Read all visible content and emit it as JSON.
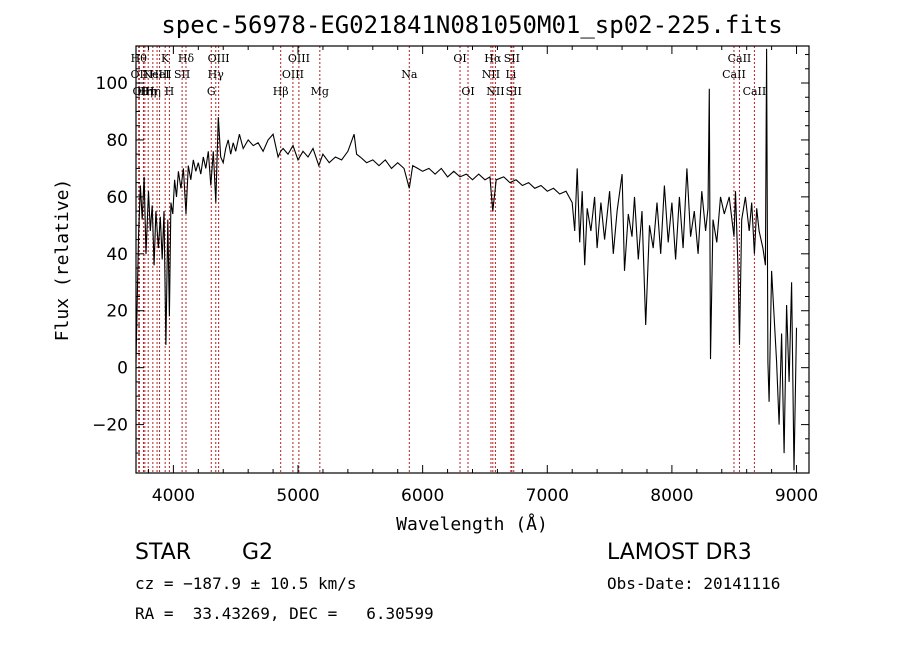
{
  "chart_data": {
    "type": "line",
    "title": "spec-56978-EG021841N081050M01_sp02-225.fits",
    "xlabel": "Wavelength (Å)",
    "ylabel": "Flux (relative)",
    "xlim": [
      3700,
      9100
    ],
    "ylim": [
      -37,
      113
    ],
    "x_ticks": [
      4000,
      5000,
      6000,
      7000,
      8000,
      9000
    ],
    "y_ticks": [
      -20,
      0,
      20,
      40,
      60,
      80,
      100
    ],
    "grid": false,
    "series": [
      {
        "values": [
          [
            3700,
            2
          ],
          [
            3720,
            46
          ],
          [
            3735,
            64
          ],
          [
            3750,
            52
          ],
          [
            3765,
            67
          ],
          [
            3780,
            40
          ],
          [
            3800,
            62
          ],
          [
            3815,
            48
          ],
          [
            3830,
            57
          ],
          [
            3845,
            36
          ],
          [
            3860,
            55
          ],
          [
            3880,
            42
          ],
          [
            3895,
            53
          ],
          [
            3910,
            38
          ],
          [
            3925,
            55
          ],
          [
            3940,
            8
          ],
          [
            3955,
            52
          ],
          [
            3968,
            18
          ],
          [
            3980,
            58
          ],
          [
            3995,
            54
          ],
          [
            4010,
            66
          ],
          [
            4025,
            60
          ],
          [
            4040,
            69
          ],
          [
            4060,
            63
          ],
          [
            4080,
            70
          ],
          [
            4101,
            54
          ],
          [
            4120,
            71
          ],
          [
            4140,
            66
          ],
          [
            4160,
            73
          ],
          [
            4180,
            69
          ],
          [
            4200,
            72
          ],
          [
            4220,
            68
          ],
          [
            4240,
            74
          ],
          [
            4260,
            70
          ],
          [
            4280,
            76
          ],
          [
            4300,
            64
          ],
          [
            4320,
            76
          ],
          [
            4340,
            58
          ],
          [
            4360,
            88
          ],
          [
            4380,
            74
          ],
          [
            4400,
            72
          ],
          [
            4420,
            77
          ],
          [
            4440,
            80
          ],
          [
            4460,
            75
          ],
          [
            4480,
            79
          ],
          [
            4500,
            76
          ],
          [
            4530,
            82
          ],
          [
            4560,
            77
          ],
          [
            4600,
            80
          ],
          [
            4640,
            78
          ],
          [
            4680,
            79
          ],
          [
            4720,
            76
          ],
          [
            4760,
            80
          ],
          [
            4800,
            82
          ],
          [
            4840,
            74
          ],
          [
            4861,
            76
          ],
          [
            4880,
            77
          ],
          [
            4920,
            75
          ],
          [
            4960,
            78
          ],
          [
            5000,
            73
          ],
          [
            5040,
            76
          ],
          [
            5080,
            74
          ],
          [
            5120,
            77
          ],
          [
            5167,
            71
          ],
          [
            5200,
            75
          ],
          [
            5250,
            72
          ],
          [
            5300,
            74
          ],
          [
            5350,
            73
          ],
          [
            5400,
            76
          ],
          [
            5450,
            82
          ],
          [
            5470,
            75
          ],
          [
            5500,
            74
          ],
          [
            5550,
            72
          ],
          [
            5600,
            73
          ],
          [
            5650,
            71
          ],
          [
            5700,
            73
          ],
          [
            5750,
            70
          ],
          [
            5800,
            72
          ],
          [
            5850,
            70
          ],
          [
            5893,
            63
          ],
          [
            5920,
            71
          ],
          [
            5960,
            70
          ],
          [
            6000,
            69
          ],
          [
            6050,
            70
          ],
          [
            6100,
            68
          ],
          [
            6150,
            70
          ],
          [
            6200,
            67
          ],
          [
            6250,
            69
          ],
          [
            6300,
            67
          ],
          [
            6350,
            68
          ],
          [
            6400,
            66
          ],
          [
            6450,
            68
          ],
          [
            6500,
            66
          ],
          [
            6540,
            67
          ],
          [
            6563,
            55
          ],
          [
            6590,
            66
          ],
          [
            6650,
            67
          ],
          [
            6700,
            65
          ],
          [
            6750,
            66
          ],
          [
            6800,
            64
          ],
          [
            6850,
            65
          ],
          [
            6900,
            63
          ],
          [
            6950,
            64
          ],
          [
            7000,
            62
          ],
          [
            7050,
            63
          ],
          [
            7100,
            61
          ],
          [
            7150,
            62
          ],
          [
            7200,
            58
          ],
          [
            7220,
            48
          ],
          [
            7240,
            70
          ],
          [
            7260,
            44
          ],
          [
            7280,
            62
          ],
          [
            7300,
            36
          ],
          [
            7320,
            56
          ],
          [
            7350,
            48
          ],
          [
            7380,
            60
          ],
          [
            7400,
            42
          ],
          [
            7430,
            58
          ],
          [
            7460,
            45
          ],
          [
            7500,
            62
          ],
          [
            7530,
            40
          ],
          [
            7560,
            55
          ],
          [
            7600,
            68
          ],
          [
            7620,
            34
          ],
          [
            7650,
            54
          ],
          [
            7680,
            46
          ],
          [
            7700,
            60
          ],
          [
            7730,
            38
          ],
          [
            7760,
            55
          ],
          [
            7790,
            15
          ],
          [
            7820,
            50
          ],
          [
            7850,
            42
          ],
          [
            7880,
            58
          ],
          [
            7910,
            40
          ],
          [
            7940,
            64
          ],
          [
            7970,
            44
          ],
          [
            8000,
            58
          ],
          [
            8030,
            38
          ],
          [
            8060,
            60
          ],
          [
            8090,
            42
          ],
          [
            8120,
            70
          ],
          [
            8150,
            46
          ],
          [
            8180,
            55
          ],
          [
            8210,
            40
          ],
          [
            8240,
            62
          ],
          [
            8270,
            48
          ],
          [
            8290,
            56
          ],
          [
            8300,
            98
          ],
          [
            8310,
            3
          ],
          [
            8330,
            52
          ],
          [
            8360,
            44
          ],
          [
            8390,
            60
          ],
          [
            8420,
            54
          ],
          [
            8460,
            60
          ],
          [
            8498,
            46
          ],
          [
            8510,
            62
          ],
          [
            8530,
            35
          ],
          [
            8542,
            8
          ],
          [
            8560,
            52
          ],
          [
            8590,
            60
          ],
          [
            8620,
            48
          ],
          [
            8640,
            58
          ],
          [
            8662,
            40
          ],
          [
            8680,
            56
          ],
          [
            8700,
            48
          ],
          [
            8730,
            42
          ],
          [
            8750,
            36
          ],
          [
            8760,
            112
          ],
          [
            8770,
            2
          ],
          [
            8780,
            -12
          ],
          [
            8800,
            34
          ],
          [
            8820,
            18
          ],
          [
            8840,
            2
          ],
          [
            8860,
            -20
          ],
          [
            8880,
            12
          ],
          [
            8900,
            -30
          ],
          [
            8920,
            22
          ],
          [
            8940,
            -5
          ],
          [
            8960,
            30
          ],
          [
            8980,
            -36
          ],
          [
            9000,
            14
          ]
        ]
      }
    ],
    "lines": [
      {
        "x": 3722,
        "label": "Hθ",
        "row": 1
      },
      {
        "x": 3727,
        "label": "OII",
        "row": 2
      },
      {
        "x": 3760,
        "label": "OIII",
        "row": 3
      },
      {
        "x": 3771,
        "label": "Hη",
        "row": 3
      },
      {
        "x": 3798,
        "label": "Hη",
        "row": 3
      },
      {
        "x": 3835,
        "label": "Hη",
        "row": 3
      },
      {
        "x": 3869,
        "label": "NeIII",
        "row": 2
      },
      {
        "x": 3889,
        "label": "HeI",
        "row": 2
      },
      {
        "x": 3934,
        "label": "K",
        "row": 1
      },
      {
        "x": 3968,
        "label": "H",
        "row": 3
      },
      {
        "x": 4070,
        "label": "SII",
        "row": 2
      },
      {
        "x": 4101,
        "label": "Hδ",
        "row": 1
      },
      {
        "x": 4304,
        "label": "G",
        "row": 3
      },
      {
        "x": 4340,
        "label": "Hγ",
        "row": 2
      },
      {
        "x": 4363,
        "label": "OIII",
        "row": 1
      },
      {
        "x": 4861,
        "label": "Hβ",
        "row": 3
      },
      {
        "x": 4959,
        "label": "OIII",
        "row": 2
      },
      {
        "x": 5007,
        "label": "OIII",
        "row": 1
      },
      {
        "x": 5175,
        "label": "Mg",
        "row": 3
      },
      {
        "x": 5893,
        "label": "Na",
        "row": 2
      },
      {
        "x": 6300,
        "label": "OI",
        "row": 1
      },
      {
        "x": 6364,
        "label": "OI",
        "row": 3
      },
      {
        "x": 6548,
        "label": "NII",
        "row": 2
      },
      {
        "x": 6563,
        "label": "Hα",
        "row": 1
      },
      {
        "x": 6584,
        "label": "NII",
        "row": 3
      },
      {
        "x": 6708,
        "label": "Li",
        "row": 2
      },
      {
        "x": 6716,
        "label": "SII",
        "row": 1
      },
      {
        "x": 6731,
        "label": "SII",
        "row": 3
      },
      {
        "x": 8498,
        "label": "CaII",
        "row": 2
      },
      {
        "x": 8542,
        "label": "CaII",
        "row": 1
      },
      {
        "x": 8662,
        "label": "CaII",
        "row": 3
      }
    ],
    "line_color": "#b22222",
    "series_color": "#000000"
  },
  "info": {
    "class": "STAR",
    "subclass": "G2",
    "survey": "LAMOST DR3",
    "cz": "cz = −187.9 ± 10.5 km/s",
    "obs_date": "Obs-Date: 20141116",
    "radec": "RA =  33.43269, DEC =   6.30599"
  }
}
